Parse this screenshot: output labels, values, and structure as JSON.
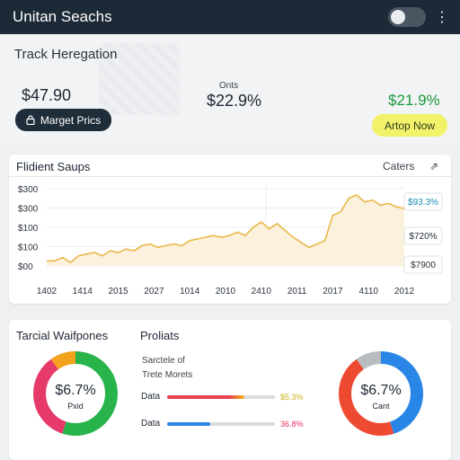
{
  "app": {
    "title": "Unitan Seachs",
    "menu_icon": "kebab-menu-icon"
  },
  "header": {
    "section_title": "Track Heregation",
    "price_left": "$47.90",
    "manage_button": "Marget Prics",
    "stat_label": "Onts",
    "price_mid": "$22.9%",
    "price_right": "$21.9%",
    "action_button": "Artop Now",
    "colors": {
      "dark": "#1f2c39",
      "positive": "#1a9a3b",
      "highlight": "#f2f26a"
    }
  },
  "chart_panel": {
    "title": "Flidient Saups",
    "right_label": "Caters",
    "share_icon": "share-icon",
    "callouts": [
      "$93.3%",
      "$720%",
      "$7900"
    ]
  },
  "chart_data": {
    "type": "area",
    "y_tick_labels": [
      "$300",
      "$300",
      "$100",
      "$100",
      "$00"
    ],
    "x_tick_labels": [
      "1402",
      "1414",
      "2015",
      "2027",
      "1014",
      "2010",
      "2410",
      "2011",
      "2017",
      "4110",
      "2012"
    ],
    "ylim": [
      0,
      5
    ],
    "series": [
      {
        "color": "#e8b84a",
        "values": [
          0.3,
          0.3,
          0.5,
          0.2,
          0.6,
          0.7,
          0.8,
          0.6,
          0.9,
          0.8,
          1.0,
          0.9,
          1.2,
          1.3,
          1.1,
          1.2,
          1.3,
          1.2,
          1.5,
          1.6,
          1.7,
          1.8,
          1.7,
          1.8,
          2.0,
          1.8,
          2.3,
          2.6,
          2.2,
          2.5,
          2.1,
          1.7,
          1.4,
          1.1,
          1.3,
          1.5,
          3.0,
          3.2,
          4.0,
          4.2,
          3.8,
          3.9,
          3.6,
          3.7,
          3.5,
          3.4
        ]
      }
    ]
  },
  "bottom_panel": {
    "left_title": "Tarcial Waifpones",
    "mid_title": "Proliats",
    "description": [
      "Sarctele of",
      "Trete Morets"
    ],
    "bars": [
      {
        "label": "Data",
        "value_text": "$5.3%",
        "fill": 0.72,
        "color1": "#e8414f",
        "color2": "#f3b41d",
        "value_color": "#c9b51a"
      },
      {
        "label": "Data",
        "value_text": "36.8%",
        "fill": 0.4,
        "color1": "#2a86e6",
        "color2": "#2a86e6",
        "value_color": "#e2325a"
      }
    ],
    "donut_left": {
      "value": "$6.7%",
      "label": "Pxid",
      "segments": [
        {
          "color": "#28b34b",
          "fraction": 0.55
        },
        {
          "color": "#e63a6b",
          "fraction": 0.35
        },
        {
          "color": "#f3a21d",
          "fraction": 0.1
        }
      ]
    },
    "donut_right": {
      "value": "$6.7%",
      "label": "Cant",
      "segments": [
        {
          "color": "#2a86e6",
          "fraction": 0.45
        },
        {
          "color": "#ee4a32",
          "fraction": 0.45
        },
        {
          "color": "#b9bcbf",
          "fraction": 0.1
        }
      ]
    }
  }
}
